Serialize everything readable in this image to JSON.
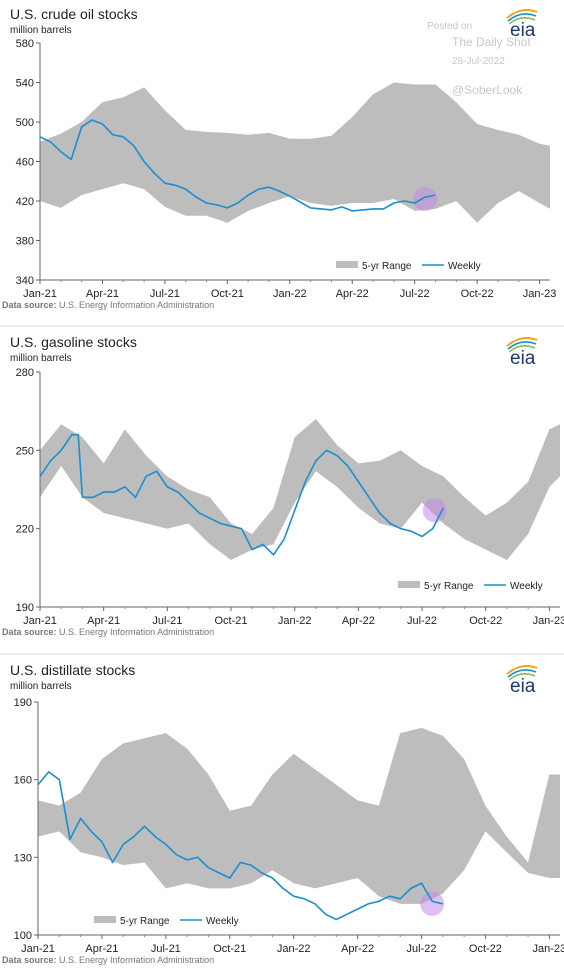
{
  "watermark": {
    "posted_on": "Posted on",
    "site": "The Daily Shot",
    "date": "28-Jul-2022",
    "handle": "@SoberLook"
  },
  "logo_text": "eia",
  "highlight_color": "#c58be8",
  "range_color": "#bdbdbd",
  "weekly_color": "#1a8fd0",
  "chart_data": [
    {
      "type": "area",
      "title": "U.S. crude oil stocks",
      "unit": "million barrels",
      "source": "U.S. Energy Information Administration",
      "source_label": "Data source:",
      "x_ticks": [
        "Jan-21",
        "Apr-21",
        "Jul-21",
        "Oct-21",
        "Jan-22",
        "Apr-22",
        "Jul-22",
        "Oct-22",
        "Jan-23"
      ],
      "xlim": [
        0,
        24.5
      ],
      "yticks": [
        340,
        380,
        420,
        460,
        500,
        540,
        580
      ],
      "ylim": [
        340,
        580
      ],
      "legend": {
        "range": "5-yr Range",
        "weekly": "Weekly",
        "placement": "bottom-right"
      },
      "range_months": [
        0,
        1,
        2,
        3,
        4,
        5,
        6,
        7,
        8,
        9,
        10,
        11,
        12,
        13,
        14,
        15,
        16,
        17,
        18,
        19,
        20,
        21,
        22,
        23,
        24,
        24.5
      ],
      "range_upper": [
        480,
        488,
        500,
        520,
        525,
        535,
        512,
        492,
        490,
        489,
        487,
        489,
        483,
        483,
        486,
        505,
        528,
        540,
        538,
        538,
        520,
        498,
        492,
        487,
        478,
        476
      ],
      "range_lower": [
        420,
        413,
        426,
        432,
        438,
        432,
        414,
        405,
        405,
        398,
        410,
        418,
        425,
        418,
        415,
        418,
        418,
        422,
        410,
        412,
        420,
        398,
        418,
        430,
        418,
        412
      ],
      "weekly_months": [
        0,
        0.5,
        1,
        1.5,
        2,
        2.5,
        3,
        3.5,
        4,
        4.5,
        5,
        5.5,
        6,
        6.5,
        7,
        7.5,
        8,
        8.5,
        9,
        9.5,
        10,
        10.5,
        11,
        11.5,
        12,
        12.5,
        13,
        13.5,
        14,
        14.5,
        15,
        15.5,
        16,
        16.5,
        17,
        17.5,
        18,
        18.5,
        19
      ],
      "weekly_values": [
        485,
        480,
        470,
        462,
        495,
        502,
        498,
        487,
        485,
        476,
        460,
        448,
        438,
        436,
        432,
        424,
        418,
        416,
        413,
        418,
        426,
        432,
        434,
        430,
        425,
        419,
        413,
        412,
        411,
        414,
        410,
        411,
        412,
        412,
        418,
        420,
        418,
        424,
        426
      ],
      "highlight_month": 18.5,
      "highlight_value": 422
    },
    {
      "type": "area",
      "title": "U.S. gasoline stocks",
      "unit": "million barrels",
      "source": "U.S. Energy Information Administration",
      "source_label": "Data source:",
      "x_ticks": [
        "Jan-21",
        "Apr-21",
        "Jul-21",
        "Oct-21",
        "Jan-22",
        "Apr-22",
        "Jul-22",
        "Oct-22",
        "Jan-23"
      ],
      "xlim": [
        0,
        24.5
      ],
      "yticks": [
        190,
        220,
        250,
        280
      ],
      "ylim": [
        190,
        280
      ],
      "legend": {
        "range": "5-yr Range",
        "weekly": "Weekly",
        "placement": "bottom-right"
      },
      "range_months": [
        0,
        1,
        2,
        3,
        4,
        5,
        6,
        7,
        8,
        9,
        10,
        11,
        12,
        13,
        14,
        15,
        16,
        17,
        18,
        19,
        20,
        21,
        22,
        23,
        24,
        24.5
      ],
      "range_upper": [
        250,
        260,
        255,
        245,
        258,
        248,
        240,
        235,
        232,
        222,
        218,
        228,
        255,
        262,
        252,
        245,
        246,
        250,
        244,
        240,
        232,
        225,
        230,
        238,
        258,
        260
      ],
      "range_lower": [
        232,
        244,
        232,
        226,
        224,
        222,
        220,
        222,
        214,
        208,
        212,
        214,
        230,
        242,
        236,
        228,
        222,
        220,
        230,
        222,
        216,
        212,
        208,
        218,
        236,
        240
      ],
      "weekly_months": [
        0,
        0.5,
        1,
        1.5,
        1.8,
        2,
        2.5,
        3,
        3.5,
        4,
        4.5,
        5,
        5.5,
        6,
        6.5,
        7,
        7.5,
        8,
        8.5,
        9,
        9.5,
        10,
        10.5,
        11,
        11.5,
        12,
        12.5,
        13,
        13.5,
        14,
        14.5,
        15,
        15.5,
        16,
        16.5,
        17,
        17.5,
        18,
        18.5,
        19
      ],
      "weekly_values": [
        240,
        246,
        250,
        256,
        256,
        232,
        232,
        234,
        234,
        236,
        232,
        240,
        242,
        236,
        234,
        230,
        226,
        224,
        222,
        221,
        220,
        212,
        214,
        210,
        216,
        227,
        238,
        246,
        250,
        248,
        244,
        238,
        232,
        226,
        222,
        220,
        219,
        217,
        220,
        228
      ],
      "highlight_month": 18.6,
      "highlight_value": 227
    },
    {
      "type": "area",
      "title": "U.S. distillate stocks",
      "unit": "million barrels",
      "source": "U.S. Energy Information Administration",
      "source_label": "Data source:",
      "x_ticks": [
        "Jan-21",
        "Apr-21",
        "Jul-21",
        "Oct-21",
        "Jan-22",
        "Apr-22",
        "Jul-22",
        "Oct-22",
        "Jan-23"
      ],
      "xlim": [
        0,
        24.5
      ],
      "yticks": [
        100,
        130,
        160,
        190
      ],
      "ylim": [
        100,
        190
      ],
      "legend": {
        "range": "5-yr Range",
        "weekly": "Weekly",
        "placement": "bottom-left"
      },
      "range_months": [
        0,
        1,
        2,
        3,
        4,
        5,
        6,
        7,
        8,
        9,
        10,
        11,
        12,
        13,
        14,
        15,
        16,
        17,
        18,
        19,
        20,
        21,
        22,
        23,
        24,
        24.5
      ],
      "range_upper": [
        152,
        150,
        155,
        168,
        174,
        176,
        178,
        172,
        162,
        148,
        150,
        162,
        170,
        164,
        158,
        152,
        150,
        178,
        180,
        177,
        168,
        150,
        138,
        128,
        162,
        162
      ],
      "range_lower": [
        138,
        140,
        132,
        130,
        127,
        128,
        118,
        120,
        118,
        118,
        120,
        125,
        120,
        118,
        120,
        122,
        115,
        112,
        112,
        116,
        125,
        140,
        132,
        124,
        122,
        122
      ],
      "weekly_months": [
        0,
        0.5,
        1,
        1.5,
        2,
        2.5,
        3,
        3.5,
        4,
        4.5,
        5,
        5.5,
        6,
        6.5,
        7,
        7.5,
        8,
        8.5,
        9,
        9.5,
        10,
        10.5,
        11,
        11.5,
        12,
        12.5,
        13,
        13.5,
        14,
        14.5,
        15,
        15.5,
        16,
        16.5,
        17,
        17.5,
        18,
        18.5,
        19
      ],
      "weekly_values": [
        158,
        163,
        160,
        137,
        145,
        140,
        136,
        128,
        135,
        138,
        142,
        138,
        135,
        131,
        129,
        130,
        126,
        124,
        122,
        128,
        127,
        124,
        122,
        118,
        115,
        114,
        112,
        108,
        106,
        108,
        110,
        112,
        113,
        115,
        114,
        118,
        120,
        113,
        112
      ],
      "highlight_month": 18.5,
      "highlight_value": 112
    }
  ]
}
